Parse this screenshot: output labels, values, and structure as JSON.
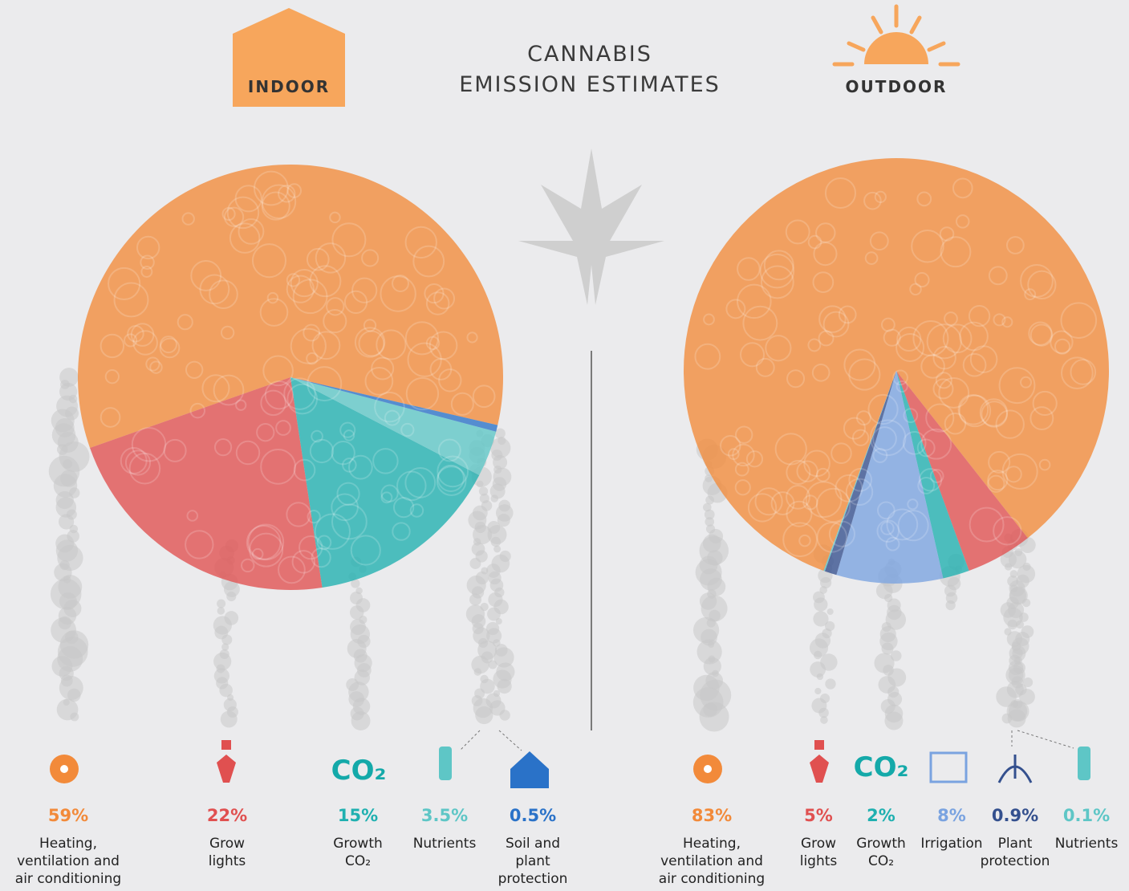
{
  "title": [
    "CANNABIS",
    "EMISSION ESTIMATES"
  ],
  "chart_data": [
    {
      "type": "pie",
      "title": "INDOOR",
      "co2_icon": "CO₂",
      "categories": [
        "Heating, ventilation and air conditioning",
        "Grow lights",
        "Growth CO₂",
        "Nutrients",
        "Soil and plant protection"
      ],
      "values": [
        59,
        22,
        15,
        3.5,
        0.5
      ],
      "value_labels": [
        "59%",
        "22%",
        "15%",
        "3.5%",
        "0.5%"
      ],
      "colors": [
        "#f28a3a",
        "#e05050",
        "#1fb0b0",
        "#5ec6c6",
        "#2a72c8"
      ]
    },
    {
      "type": "pie",
      "title": "OUTDOOR",
      "co2_icon": "CO₂",
      "categories": [
        "Heating, ventilation and air conditioning",
        "Grow lights",
        "Growth CO₂",
        "Irrigation",
        "Plant protection",
        "Nutrients"
      ],
      "values": [
        83,
        5,
        2,
        8,
        0.9,
        0.1
      ],
      "value_labels": [
        "83%",
        "5%",
        "2%",
        "8%",
        "0.9%",
        "0.1%"
      ],
      "colors": [
        "#f28a3a",
        "#e05050",
        "#1fb0b0",
        "#7aa3e0",
        "#34508e",
        "#5ec6c6"
      ]
    }
  ]
}
